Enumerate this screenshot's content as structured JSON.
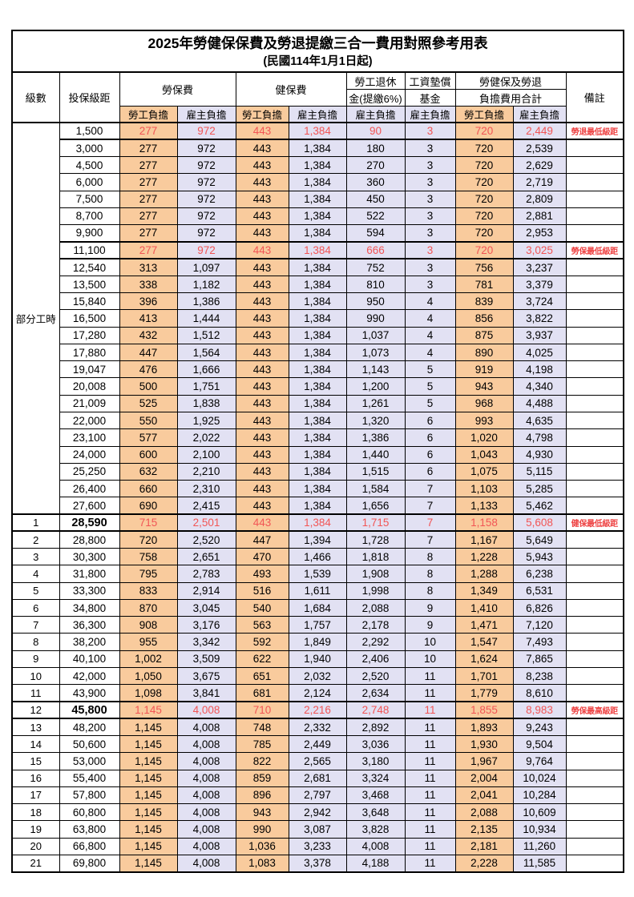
{
  "page": {
    "title": "2025年勞健保保費及勞退提繳三合一費用對照參考用表",
    "subtitle": "(民國114年1月1日起)"
  },
  "colors": {
    "employee_col_bg": "#F9CB9D",
    "employer_col_bg": "#E2E1F3",
    "highlight_text": "#F25555",
    "note_text": "#EE4444"
  },
  "header": {
    "level": "級數",
    "bracket": "投保級距",
    "labor_ins": "勞保費",
    "health_ins": "健保費",
    "pension_line1": "勞工退休",
    "pension_line2": "金(提繳6%)",
    "wage_fund_line1": "工資墊償",
    "wage_fund_line2": "基金",
    "total_line1": "勞健保及勞退",
    "total_line2": "負擔費用合計",
    "remark": "備註",
    "employee": "勞工負擔",
    "employer": "雇主負擔"
  },
  "part_time_label": "部分工時",
  "value_col_pattern": [
    "emp",
    "er",
    "emp",
    "er",
    "er",
    "er",
    "emp",
    "er"
  ],
  "rows": [
    {
      "level": null,
      "bracket": "1,500",
      "v": [
        "277",
        "972",
        "443",
        "1,384",
        "90",
        "3",
        "720",
        "2,449"
      ],
      "note": "勞退最低級距",
      "hl": true,
      "bold": false
    },
    {
      "level": null,
      "bracket": "3,000",
      "v": [
        "277",
        "972",
        "443",
        "1,384",
        "180",
        "3",
        "720",
        "2,539"
      ],
      "note": "",
      "hl": false,
      "bold": false
    },
    {
      "level": null,
      "bracket": "4,500",
      "v": [
        "277",
        "972",
        "443",
        "1,384",
        "270",
        "3",
        "720",
        "2,629"
      ],
      "note": "",
      "hl": false,
      "bold": false
    },
    {
      "level": null,
      "bracket": "6,000",
      "v": [
        "277",
        "972",
        "443",
        "1,384",
        "360",
        "3",
        "720",
        "2,719"
      ],
      "note": "",
      "hl": false,
      "bold": false
    },
    {
      "level": null,
      "bracket": "7,500",
      "v": [
        "277",
        "972",
        "443",
        "1,384",
        "450",
        "3",
        "720",
        "2,809"
      ],
      "note": "",
      "hl": false,
      "bold": false
    },
    {
      "level": null,
      "bracket": "8,700",
      "v": [
        "277",
        "972",
        "443",
        "1,384",
        "522",
        "3",
        "720",
        "2,881"
      ],
      "note": "",
      "hl": false,
      "bold": false
    },
    {
      "level": null,
      "bracket": "9,900",
      "v": [
        "277",
        "972",
        "443",
        "1,384",
        "594",
        "3",
        "720",
        "2,953"
      ],
      "note": "",
      "hl": false,
      "bold": false
    },
    {
      "level": null,
      "bracket": "11,100",
      "v": [
        "277",
        "972",
        "443",
        "1,384",
        "666",
        "3",
        "720",
        "3,025"
      ],
      "note": "勞保最低級距",
      "hl": true,
      "bold": false
    },
    {
      "level": null,
      "bracket": "12,540",
      "v": [
        "313",
        "1,097",
        "443",
        "1,384",
        "752",
        "3",
        "756",
        "3,237"
      ],
      "note": "",
      "hl": false,
      "bold": false
    },
    {
      "level": null,
      "bracket": "13,500",
      "v": [
        "338",
        "1,182",
        "443",
        "1,384",
        "810",
        "3",
        "781",
        "3,379"
      ],
      "note": "",
      "hl": false,
      "bold": false
    },
    {
      "level": null,
      "bracket": "15,840",
      "v": [
        "396",
        "1,386",
        "443",
        "1,384",
        "950",
        "4",
        "839",
        "3,724"
      ],
      "note": "",
      "hl": false,
      "bold": false
    },
    {
      "level": null,
      "bracket": "16,500",
      "v": [
        "413",
        "1,444",
        "443",
        "1,384",
        "990",
        "4",
        "856",
        "3,822"
      ],
      "note": "",
      "hl": false,
      "bold": false
    },
    {
      "level": null,
      "bracket": "17,280",
      "v": [
        "432",
        "1,512",
        "443",
        "1,384",
        "1,037",
        "4",
        "875",
        "3,937"
      ],
      "note": "",
      "hl": false,
      "bold": false
    },
    {
      "level": null,
      "bracket": "17,880",
      "v": [
        "447",
        "1,564",
        "443",
        "1,384",
        "1,073",
        "4",
        "890",
        "4,025"
      ],
      "note": "",
      "hl": false,
      "bold": false
    },
    {
      "level": null,
      "bracket": "19,047",
      "v": [
        "476",
        "1,666",
        "443",
        "1,384",
        "1,143",
        "5",
        "919",
        "4,198"
      ],
      "note": "",
      "hl": false,
      "bold": false
    },
    {
      "level": null,
      "bracket": "20,008",
      "v": [
        "500",
        "1,751",
        "443",
        "1,384",
        "1,200",
        "5",
        "943",
        "4,340"
      ],
      "note": "",
      "hl": false,
      "bold": false
    },
    {
      "level": null,
      "bracket": "21,009",
      "v": [
        "525",
        "1,838",
        "443",
        "1,384",
        "1,261",
        "5",
        "968",
        "4,488"
      ],
      "note": "",
      "hl": false,
      "bold": false
    },
    {
      "level": null,
      "bracket": "22,000",
      "v": [
        "550",
        "1,925",
        "443",
        "1,384",
        "1,320",
        "6",
        "993",
        "4,635"
      ],
      "note": "",
      "hl": false,
      "bold": false
    },
    {
      "level": null,
      "bracket": "23,100",
      "v": [
        "577",
        "2,022",
        "443",
        "1,384",
        "1,386",
        "6",
        "1,020",
        "4,798"
      ],
      "note": "",
      "hl": false,
      "bold": false
    },
    {
      "level": null,
      "bracket": "24,000",
      "v": [
        "600",
        "2,100",
        "443",
        "1,384",
        "1,440",
        "6",
        "1,043",
        "4,930"
      ],
      "note": "",
      "hl": false,
      "bold": false
    },
    {
      "level": null,
      "bracket": "25,250",
      "v": [
        "632",
        "2,210",
        "443",
        "1,384",
        "1,515",
        "6",
        "1,075",
        "5,115"
      ],
      "note": "",
      "hl": false,
      "bold": false
    },
    {
      "level": null,
      "bracket": "26,400",
      "v": [
        "660",
        "2,310",
        "443",
        "1,384",
        "1,584",
        "7",
        "1,103",
        "5,285"
      ],
      "note": "",
      "hl": false,
      "bold": false
    },
    {
      "level": null,
      "bracket": "27,600",
      "v": [
        "690",
        "2,415",
        "443",
        "1,384",
        "1,656",
        "7",
        "1,133",
        "5,462"
      ],
      "note": "",
      "hl": false,
      "bold": false
    },
    {
      "level": "1",
      "bracket": "28,590",
      "v": [
        "715",
        "2,501",
        "443",
        "1,384",
        "1,715",
        "7",
        "1,158",
        "5,608"
      ],
      "note": "健保最低級距",
      "hl": true,
      "bold": true
    },
    {
      "level": "2",
      "bracket": "28,800",
      "v": [
        "720",
        "2,520",
        "447",
        "1,394",
        "1,728",
        "7",
        "1,167",
        "5,649"
      ],
      "note": "",
      "hl": false,
      "bold": false
    },
    {
      "level": "3",
      "bracket": "30,300",
      "v": [
        "758",
        "2,651",
        "470",
        "1,466",
        "1,818",
        "8",
        "1,228",
        "5,943"
      ],
      "note": "",
      "hl": false,
      "bold": false
    },
    {
      "level": "4",
      "bracket": "31,800",
      "v": [
        "795",
        "2,783",
        "493",
        "1,539",
        "1,908",
        "8",
        "1,288",
        "6,238"
      ],
      "note": "",
      "hl": false,
      "bold": false
    },
    {
      "level": "5",
      "bracket": "33,300",
      "v": [
        "833",
        "2,914",
        "516",
        "1,611",
        "1,998",
        "8",
        "1,349",
        "6,531"
      ],
      "note": "",
      "hl": false,
      "bold": false
    },
    {
      "level": "6",
      "bracket": "34,800",
      "v": [
        "870",
        "3,045",
        "540",
        "1,684",
        "2,088",
        "9",
        "1,410",
        "6,826"
      ],
      "note": "",
      "hl": false,
      "bold": false
    },
    {
      "level": "7",
      "bracket": "36,300",
      "v": [
        "908",
        "3,176",
        "563",
        "1,757",
        "2,178",
        "9",
        "1,471",
        "7,120"
      ],
      "note": "",
      "hl": false,
      "bold": false
    },
    {
      "level": "8",
      "bracket": "38,200",
      "v": [
        "955",
        "3,342",
        "592",
        "1,849",
        "2,292",
        "10",
        "1,547",
        "7,493"
      ],
      "note": "",
      "hl": false,
      "bold": false
    },
    {
      "level": "9",
      "bracket": "40,100",
      "v": [
        "1,002",
        "3,509",
        "622",
        "1,940",
        "2,406",
        "10",
        "1,624",
        "7,865"
      ],
      "note": "",
      "hl": false,
      "bold": false
    },
    {
      "level": "10",
      "bracket": "42,000",
      "v": [
        "1,050",
        "3,675",
        "651",
        "2,032",
        "2,520",
        "11",
        "1,701",
        "8,238"
      ],
      "note": "",
      "hl": false,
      "bold": false
    },
    {
      "level": "11",
      "bracket": "43,900",
      "v": [
        "1,098",
        "3,841",
        "681",
        "2,124",
        "2,634",
        "11",
        "1,779",
        "8,610"
      ],
      "note": "",
      "hl": false,
      "bold": false
    },
    {
      "level": "12",
      "bracket": "45,800",
      "v": [
        "1,145",
        "4,008",
        "710",
        "2,216",
        "2,748",
        "11",
        "1,855",
        "8,983"
      ],
      "note": "勞保最高級距",
      "hl": true,
      "bold": true
    },
    {
      "level": "13",
      "bracket": "48,200",
      "v": [
        "1,145",
        "4,008",
        "748",
        "2,332",
        "2,892",
        "11",
        "1,893",
        "9,243"
      ],
      "note": "",
      "hl": false,
      "bold": false
    },
    {
      "level": "14",
      "bracket": "50,600",
      "v": [
        "1,145",
        "4,008",
        "785",
        "2,449",
        "3,036",
        "11",
        "1,930",
        "9,504"
      ],
      "note": "",
      "hl": false,
      "bold": false
    },
    {
      "level": "15",
      "bracket": "53,000",
      "v": [
        "1,145",
        "4,008",
        "822",
        "2,565",
        "3,180",
        "11",
        "1,967",
        "9,764"
      ],
      "note": "",
      "hl": false,
      "bold": false
    },
    {
      "level": "16",
      "bracket": "55,400",
      "v": [
        "1,145",
        "4,008",
        "859",
        "2,681",
        "3,324",
        "11",
        "2,004",
        "10,024"
      ],
      "note": "",
      "hl": false,
      "bold": false
    },
    {
      "level": "17",
      "bracket": "57,800",
      "v": [
        "1,145",
        "4,008",
        "896",
        "2,797",
        "3,468",
        "11",
        "2,041",
        "10,284"
      ],
      "note": "",
      "hl": false,
      "bold": false
    },
    {
      "level": "18",
      "bracket": "60,800",
      "v": [
        "1,145",
        "4,008",
        "943",
        "2,942",
        "3,648",
        "11",
        "2,088",
        "10,609"
      ],
      "note": "",
      "hl": false,
      "bold": false
    },
    {
      "level": "19",
      "bracket": "63,800",
      "v": [
        "1,145",
        "4,008",
        "990",
        "3,087",
        "3,828",
        "11",
        "2,135",
        "10,934"
      ],
      "note": "",
      "hl": false,
      "bold": false
    },
    {
      "level": "20",
      "bracket": "66,800",
      "v": [
        "1,145",
        "4,008",
        "1,036",
        "3,233",
        "4,008",
        "11",
        "2,181",
        "11,260"
      ],
      "note": "",
      "hl": false,
      "bold": false
    },
    {
      "level": "21",
      "bracket": "69,800",
      "v": [
        "1,145",
        "4,008",
        "1,083",
        "3,378",
        "4,188",
        "11",
        "2,228",
        "11,585"
      ],
      "note": "",
      "hl": false,
      "bold": false
    }
  ]
}
